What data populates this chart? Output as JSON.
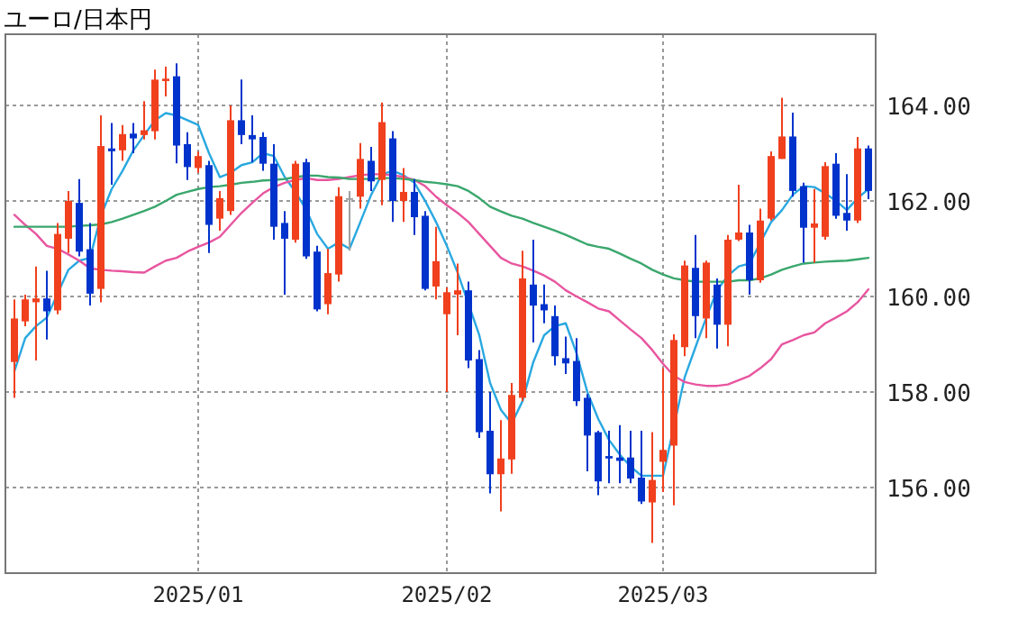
{
  "chart_data": {
    "type": "candlestick",
    "title": "ユーロ/日本円",
    "categories": [
      null,
      null,
      null,
      null,
      null,
      null,
      null,
      null,
      null,
      null,
      null,
      null,
      null,
      null,
      null,
      null,
      null,
      "2025/01",
      null,
      null,
      null,
      null,
      null,
      null,
      null,
      null,
      null,
      null,
      null,
      null,
      null,
      null,
      null,
      null,
      null,
      null,
      null,
      null,
      null,
      null,
      "2025/02",
      null,
      null,
      null,
      null,
      null,
      null,
      null,
      null,
      null,
      null,
      null,
      null,
      null,
      null,
      null,
      null,
      null,
      null,
      null,
      "2025/03",
      null,
      null,
      null,
      null,
      null,
      null,
      null,
      null,
      null,
      null,
      null,
      null,
      null,
      null,
      null,
      null,
      null,
      null,
      null
    ],
    "ohlc": [
      [
        158.63,
        159.94,
        157.88,
        159.54
      ],
      [
        159.48,
        160.04,
        159.38,
        159.94
      ],
      [
        159.88,
        160.63,
        158.66,
        159.96
      ],
      [
        159.96,
        160.54,
        159.1,
        159.69
      ],
      [
        159.71,
        161.54,
        159.63,
        161.31
      ],
      [
        161.21,
        162.21,
        160.91,
        162.0
      ],
      [
        161.96,
        162.46,
        160.84,
        160.94
      ],
      [
        160.99,
        161.54,
        159.81,
        160.06
      ],
      [
        160.16,
        163.79,
        159.88,
        163.15
      ],
      [
        163.1,
        163.63,
        162.34,
        163.04
      ],
      [
        163.06,
        163.59,
        162.84,
        163.4
      ],
      [
        163.41,
        163.63,
        163.0,
        163.31
      ],
      [
        163.38,
        164.09,
        163.29,
        163.48
      ],
      [
        163.46,
        164.75,
        163.29,
        164.54
      ],
      [
        164.51,
        164.81,
        164.19,
        164.56
      ],
      [
        164.61,
        164.88,
        162.79,
        163.16
      ],
      [
        163.19,
        163.44,
        162.44,
        162.71
      ],
      [
        162.69,
        163.04,
        162.59,
        162.94
      ],
      [
        162.75,
        162.84,
        160.91,
        161.5
      ],
      [
        161.63,
        162.21,
        161.38,
        162.06
      ],
      [
        161.79,
        164.0,
        161.71,
        163.69
      ],
      [
        163.69,
        164.54,
        163.19,
        163.38
      ],
      [
        163.38,
        163.79,
        162.81,
        163.29
      ],
      [
        163.34,
        163.44,
        162.63,
        162.78
      ],
      [
        162.78,
        163.19,
        161.19,
        161.46
      ],
      [
        161.54,
        161.79,
        160.04,
        161.21
      ],
      [
        161.19,
        162.84,
        161.13,
        162.78
      ],
      [
        162.81,
        162.88,
        160.79,
        160.84
      ],
      [
        160.94,
        161.06,
        159.69,
        159.73
      ],
      [
        159.84,
        161.0,
        159.63,
        160.49
      ],
      [
        160.46,
        162.29,
        160.31,
        162.1
      ],
      [
        162.06,
        162.21,
        160.96,
        162.06
      ],
      [
        162.09,
        163.21,
        161.84,
        162.88
      ],
      [
        162.84,
        163.13,
        162.21,
        162.41
      ],
      [
        162.44,
        164.06,
        161.91,
        163.65
      ],
      [
        163.31,
        163.46,
        161.56,
        162.0
      ],
      [
        162.0,
        162.69,
        161.56,
        162.19
      ],
      [
        162.19,
        162.46,
        161.29,
        161.66
      ],
      [
        161.69,
        161.79,
        160.13,
        160.16
      ],
      [
        160.21,
        161.46,
        159.94,
        160.74
      ],
      [
        159.63,
        160.19,
        158.0,
        160.09
      ],
      [
        160.04,
        160.69,
        159.19,
        160.13
      ],
      [
        160.13,
        160.31,
        158.5,
        158.66
      ],
      [
        158.69,
        158.88,
        157.04,
        157.16
      ],
      [
        157.19,
        158.0,
        155.88,
        156.28
      ],
      [
        156.28,
        157.41,
        155.5,
        156.61
      ],
      [
        156.59,
        158.19,
        156.29,
        157.94
      ],
      [
        157.88,
        160.96,
        157.81,
        160.38
      ],
      [
        160.25,
        161.19,
        159.04,
        159.81
      ],
      [
        159.84,
        160.25,
        159.44,
        159.71
      ],
      [
        159.59,
        159.81,
        158.56,
        158.75
      ],
      [
        158.71,
        159.16,
        158.38,
        158.6
      ],
      [
        158.65,
        159.13,
        157.71,
        157.81
      ],
      [
        157.88,
        157.96,
        156.34,
        157.09
      ],
      [
        157.16,
        157.19,
        155.84,
        156.13
      ],
      [
        156.66,
        157.19,
        156.09,
        156.61
      ],
      [
        156.63,
        157.31,
        156.09,
        156.56
      ],
      [
        156.63,
        157.19,
        156.09,
        156.19
      ],
      [
        156.21,
        157.19,
        155.66,
        155.71
      ],
      [
        155.69,
        157.16,
        154.84,
        156.16
      ],
      [
        156.54,
        158.5,
        155.91,
        156.79
      ],
      [
        156.88,
        159.21,
        155.63,
        159.09
      ],
      [
        158.94,
        160.75,
        158.75,
        160.65
      ],
      [
        160.6,
        161.29,
        159.13,
        159.59
      ],
      [
        159.54,
        160.75,
        159.13,
        160.71
      ],
      [
        160.25,
        160.38,
        158.91,
        159.41
      ],
      [
        159.41,
        161.29,
        158.96,
        161.19
      ],
      [
        161.19,
        162.34,
        161.16,
        161.34
      ],
      [
        161.34,
        161.5,
        160.04,
        160.34
      ],
      [
        160.34,
        161.84,
        160.29,
        161.59
      ],
      [
        161.63,
        163.04,
        161.59,
        162.94
      ],
      [
        162.88,
        164.16,
        162.88,
        163.35
      ],
      [
        163.35,
        163.85,
        162.09,
        162.21
      ],
      [
        162.31,
        162.38,
        160.71,
        161.44
      ],
      [
        161.44,
        162.25,
        160.71,
        161.53
      ],
      [
        161.25,
        162.81,
        161.19,
        162.73
      ],
      [
        162.78,
        163.0,
        161.63,
        161.69
      ],
      [
        161.75,
        162.56,
        161.38,
        161.59
      ],
      [
        161.59,
        163.34,
        161.54,
        163.1
      ],
      [
        163.1,
        163.16,
        162.04,
        162.21
      ]
    ],
    "colors": [
      "#f0401e",
      "#f0401e",
      "#f0401e",
      "#0033cc",
      "#f0401e",
      "#f0401e",
      "#0033cc",
      "#0033cc",
      "#f0401e",
      "#0033cc",
      "#f0401e",
      "#0033cc",
      "#f0401e",
      "#f0401e",
      "#f0401e",
      "#0033cc",
      "#0033cc",
      "#f0401e",
      "#0033cc",
      "#f0401e",
      "#f0401e",
      "#0033cc",
      "#0033cc",
      "#0033cc",
      "#0033cc",
      "#0033cc",
      "#f0401e",
      "#0033cc",
      "#0033cc",
      "#f0401e",
      "#f0401e",
      "#a0a0a0",
      "#f0401e",
      "#0033cc",
      "#f0401e",
      "#0033cc",
      "#f0401e",
      "#0033cc",
      "#0033cc",
      "#f0401e",
      "#f0401e",
      "#f0401e",
      "#0033cc",
      "#0033cc",
      "#0033cc",
      "#f0401e",
      "#f0401e",
      "#f0401e",
      "#0033cc",
      "#0033cc",
      "#0033cc",
      "#0033cc",
      "#0033cc",
      "#0033cc",
      "#0033cc",
      "#0033cc",
      "#0033cc",
      "#0033cc",
      "#0033cc",
      "#f0401e",
      "#f0401e",
      "#f0401e",
      "#f0401e",
      "#0033cc",
      "#f0401e",
      "#0033cc",
      "#f0401e",
      "#f0401e",
      "#0033cc",
      "#f0401e",
      "#f0401e",
      "#f0401e",
      "#0033cc",
      "#0033cc",
      "#f0401e",
      "#f0401e",
      "#0033cc",
      "#0033cc",
      "#f0401e",
      "#0033cc"
    ],
    "series": [
      {
        "type": "line",
        "color": "#29a8e0",
        "values": [
          158.44,
          159.13,
          159.38,
          159.56,
          160.06,
          160.56,
          160.75,
          160.81,
          161.69,
          162.25,
          162.63,
          163.06,
          163.38,
          163.69,
          163.84,
          163.79,
          163.69,
          163.59,
          163.0,
          162.5,
          162.59,
          162.75,
          162.81,
          163.0,
          162.94,
          162.5,
          162.19,
          161.81,
          161.31,
          161.0,
          161.13,
          161.0,
          161.56,
          162.13,
          162.56,
          162.63,
          162.54,
          162.38,
          162.0,
          161.56,
          161.06,
          160.5,
          null,
          159.19,
          158.19,
          157.63,
          157.34,
          157.81,
          158.63,
          159.19,
          159.38,
          159.44,
          158.81,
          158.0,
          157.44,
          157.0,
          156.69,
          156.44,
          156.25,
          156.25,
          156.25,
          null,
          158.31,
          158.94,
          159.56,
          160.13,
          160.44,
          160.63,
          160.69,
          161.13,
          161.56,
          161.81,
          162.13,
          162.31,
          162.29,
          162.16,
          162.0,
          161.81,
          162.06,
          162.25
        ]
      },
      {
        "type": "line",
        "color": "#e8559f",
        "values": [
          161.71,
          161.5,
          161.31,
          161.06,
          161.0,
          160.88,
          160.75,
          160.59,
          160.56,
          160.54,
          160.53,
          160.51,
          160.5,
          160.63,
          160.75,
          160.81,
          160.94,
          161.04,
          161.13,
          161.25,
          161.5,
          161.75,
          161.96,
          162.16,
          162.29,
          162.38,
          162.44,
          162.48,
          162.44,
          162.44,
          162.46,
          162.5,
          162.54,
          162.56,
          162.56,
          162.54,
          162.5,
          162.44,
          162.31,
          162.09,
          161.91,
          161.75,
          161.56,
          161.31,
          161.06,
          160.81,
          160.69,
          160.63,
          160.54,
          160.44,
          160.31,
          160.13,
          160.0,
          159.88,
          159.75,
          159.69,
          159.5,
          159.31,
          159.13,
          158.88,
          158.59,
          158.34,
          158.21,
          158.16,
          158.13,
          158.13,
          158.16,
          158.25,
          158.34,
          158.5,
          158.69,
          159.0,
          159.09,
          159.19,
          159.25,
          159.44,
          159.56,
          159.69,
          159.88,
          160.15
        ]
      },
      {
        "type": "line",
        "color": "#3aa76d",
        "values": [
          161.46,
          161.46,
          161.46,
          161.46,
          161.46,
          161.46,
          161.48,
          161.49,
          161.51,
          161.56,
          161.63,
          161.71,
          161.79,
          161.88,
          162.0,
          162.13,
          162.19,
          162.25,
          162.29,
          162.31,
          162.34,
          162.38,
          162.4,
          162.43,
          162.44,
          162.46,
          162.5,
          162.53,
          162.53,
          162.5,
          162.49,
          162.46,
          162.46,
          162.46,
          162.48,
          162.48,
          162.46,
          162.44,
          162.4,
          162.38,
          162.35,
          162.31,
          162.21,
          162.06,
          161.88,
          161.78,
          161.69,
          161.63,
          161.54,
          161.46,
          161.38,
          161.29,
          161.19,
          161.09,
          161.04,
          161.0,
          160.9,
          160.79,
          160.69,
          160.56,
          160.46,
          160.38,
          160.34,
          160.31,
          160.31,
          160.31,
          160.31,
          160.34,
          160.34,
          160.38,
          160.46,
          160.56,
          160.63,
          160.69,
          160.71,
          160.73,
          160.74,
          160.75,
          160.78,
          160.81
        ]
      }
    ],
    "ylim": [
      154.21,
      165.49
    ],
    "yticks": [
      {
        "value": 156,
        "label": "156.00"
      },
      {
        "value": 158,
        "label": "158.00"
      },
      {
        "value": 160,
        "label": "160.00"
      },
      {
        "value": 162,
        "label": "162.00"
      },
      {
        "value": 164,
        "label": "164.00"
      }
    ],
    "grid": true
  }
}
